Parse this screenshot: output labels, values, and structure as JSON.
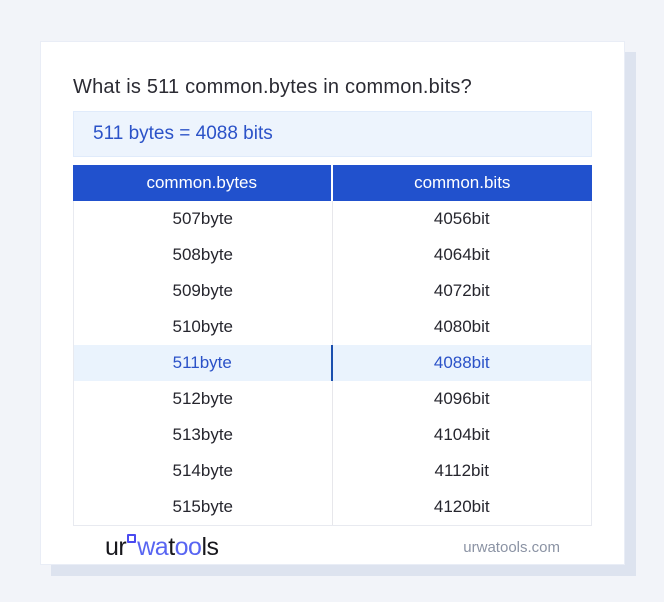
{
  "title": "What is 511 common.bytes in common.bits?",
  "result": {
    "text": "511 bytes = 4088 bits"
  },
  "table": {
    "columns": [
      "common.bytes",
      "common.bits"
    ],
    "rows": [
      {
        "bytes": "507byte",
        "bits": "4056bit",
        "highlighted": false
      },
      {
        "bytes": "508byte",
        "bits": "4064bit",
        "highlighted": false
      },
      {
        "bytes": "509byte",
        "bits": "4072bit",
        "highlighted": false
      },
      {
        "bytes": "510byte",
        "bits": "4080bit",
        "highlighted": false
      },
      {
        "bytes": "511byte",
        "bits": "4088bit",
        "highlighted": true
      },
      {
        "bytes": "512byte",
        "bits": "4096bit",
        "highlighted": false
      },
      {
        "bytes": "513byte",
        "bits": "4104bit",
        "highlighted": false
      },
      {
        "bytes": "514byte",
        "bits": "4112bit",
        "highlighted": false
      },
      {
        "bytes": "515byte",
        "bits": "4120bit",
        "highlighted": false
      }
    ]
  },
  "footer": {
    "logo_segments": [
      {
        "text": "ur",
        "color": "dark",
        "mark_after": true
      },
      {
        "text": "wa",
        "color": "blue",
        "mark_after": false
      },
      {
        "text": "t",
        "color": "dark",
        "mark_after": false
      },
      {
        "text": "oo",
        "color": "blue",
        "mark_after": false
      },
      {
        "text": "ls",
        "color": "dark",
        "mark_after": false
      }
    ],
    "site_link": "urwatools.com"
  },
  "colors": {
    "page_background": "#f2f4f9",
    "card_background": "#ffffff",
    "card_shadow": "#dde3ef",
    "header_blue": "#2151cd",
    "link_blue": "#2b52c8",
    "result_box_background": "#edf4fd",
    "highlight_row_background": "#eaf3fd",
    "highlight_divider_blue": "#1b4fae",
    "logo_blue": "#5865f2",
    "footer_text_gray": "#8b93a4"
  }
}
